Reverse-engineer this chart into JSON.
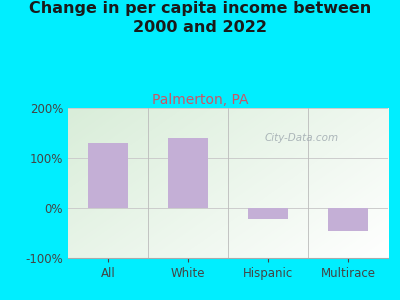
{
  "title": "Change in per capita income between\n2000 and 2022",
  "subtitle": "Palmerton, PA",
  "categories": [
    "All",
    "White",
    "Hispanic",
    "Multirace"
  ],
  "values": [
    130,
    140,
    -22,
    -45
  ],
  "bar_color": "#c4afd6",
  "title_fontsize": 11.5,
  "subtitle_fontsize": 10,
  "subtitle_color": "#cc5566",
  "title_color": "#1a1a1a",
  "background_outer": "#00eeff",
  "plot_bg_top": "#f0f5ee",
  "plot_bg_bottom": "#e8f0e0",
  "ylim": [
    -100,
    200
  ],
  "yticks": [
    -100,
    0,
    100,
    200
  ],
  "ytick_labels": [
    "-100%",
    "0%",
    "100%",
    "200%"
  ],
  "watermark": "City-Data.com"
}
